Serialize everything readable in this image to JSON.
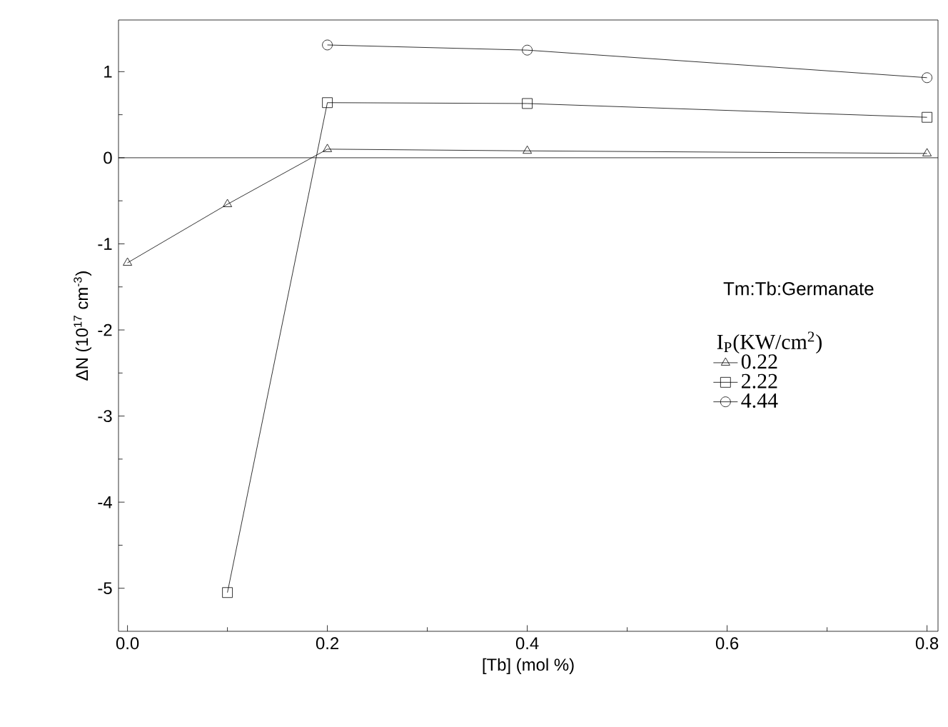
{
  "chart_data": {
    "type": "line",
    "xlabel": "[Tb] (mol %)",
    "ylabel": "ΔN (10$^{17}$ cm$^{-3}$)",
    "legend_title": "I$_{P}$(KW/cm$^{2}$)",
    "annotations": [
      "Tm:Tb:Germanate"
    ],
    "xlim": [
      -0.009,
      0.811
    ],
    "ylim": [
      -5.5,
      1.6
    ],
    "xticks": [
      {
        "value": 0,
        "label": "0.0"
      },
      0.2,
      0.4,
      0.6,
      0.8
    ],
    "yticks": [
      -5,
      -4,
      -3,
      -2,
      -1,
      0,
      1
    ],
    "ref_lines": [
      {
        "axis": "y",
        "value": 0,
        "color": "#000000"
      }
    ],
    "legend": "right",
    "grid": false,
    "series": [
      {
        "name": "0.22",
        "color": "#000000",
        "marker": "triangle",
        "x": [
          0,
          0.1,
          0.2,
          0.4,
          0.8
        ],
        "values": [
          -1.22,
          -0.54,
          0.1,
          0.08,
          0.05
        ]
      },
      {
        "name": "2.22",
        "color": "#000000",
        "marker": "square",
        "x": [
          0.1,
          0.2,
          0.4,
          0.8
        ],
        "values": [
          -5.05,
          0.64,
          0.63,
          0.47
        ]
      },
      {
        "name": "4.44",
        "color": "#000000",
        "marker": "circle",
        "x": [
          0.2,
          0.4,
          0.8
        ],
        "values": [
          1.31,
          1.25,
          0.93
        ]
      }
    ]
  }
}
